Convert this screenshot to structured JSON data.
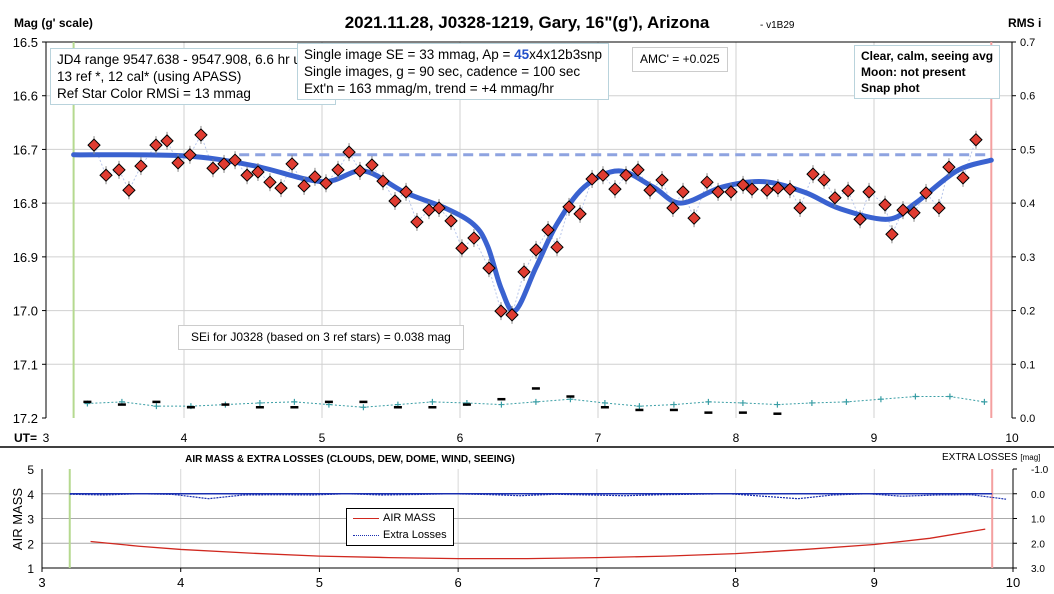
{
  "title": "2021.11.28, J0328-1219, Gary, 16\"(g'), Arizona",
  "version": "- v1B29",
  "y_left_label": "Mag (g' scale)",
  "y_right_label": "RMS i",
  "x_axis_prefix": "UT=",
  "info_box_1": [
    "JD4 range 9547.638 - 9547.908, 6.6 hr useful",
    "13 ref *, 12 cal* (using APASS)",
    "Ref Star Color RMSi = 13 mmag"
  ],
  "info_box_2": {
    "line1_a": "Single image SE = 33 mmag, Ap = ",
    "line1_b": "45",
    "line1_c": "x4x12b3snp",
    "line2": "Single images, g = 90 sec, cadence = 100 sec",
    "line3": "Ext'n = 163 mmag/m, trend = +4 mmag/hr"
  },
  "amc_box": "AMC' = +0.025",
  "conditions_box": [
    "Clear, calm, seeing avg",
    "Moon: not present",
    "Snap phot"
  ],
  "sei_box": "SEi for J0328 (based on 3 ref stars) = 0.038 mag",
  "colors": {
    "diamond": "#e03c31",
    "fit": "#3a62d0",
    "cross": "#1a3fb5",
    "teal": "#3a9ea5",
    "airmass": "#d0281f",
    "losses": "#1a2fb0",
    "start_line": "#b5d98f",
    "end_line": "#f4a0a0"
  },
  "chart_data": [
    {
      "type": "scatter",
      "title": "2021.11.28, J0328-1219, Gary, 16\"(g'), Arizona",
      "xlabel": "UT",
      "ylabel": "Mag (g' scale)",
      "y2label": "RMS i",
      "xlim": [
        3,
        10
      ],
      "ylim": [
        16.5,
        17.2
      ],
      "y2lim": [
        0,
        0.7
      ],
      "xticks": [
        "3",
        "4",
        "5",
        "6",
        "7",
        "8",
        "9",
        "10"
      ],
      "yticks": [
        "16.5",
        "16.6",
        "16.7",
        "16.8",
        "16.9",
        "17.0",
        "17.1",
        "17.2"
      ],
      "y2ticks": [
        "0.7",
        "0.6",
        "0.5",
        "0.4",
        "0.3",
        "0.2",
        "0.1",
        "0.0"
      ],
      "grid": true,
      "start_ut": 3.2,
      "end_ut": 9.85,
      "reference_mag": 16.71,
      "binned": {
        "x": [
          3.348,
          3.435,
          3.529,
          3.601,
          3.688,
          3.797,
          3.877,
          3.957,
          4.043,
          4.123,
          4.21,
          4.29,
          4.37,
          4.457,
          4.536,
          4.623,
          4.703,
          4.783,
          4.87,
          4.949,
          5.029,
          5.116,
          5.196,
          5.275,
          5.362,
          5.442,
          5.529,
          5.609,
          5.688,
          5.775,
          5.848,
          5.935,
          6.014,
          6.101,
          6.21,
          6.297,
          6.377,
          6.464,
          6.551,
          6.638,
          6.703,
          6.79,
          6.87,
          6.957,
          7.036,
          7.123,
          7.203,
          7.29,
          7.377,
          7.464,
          7.543,
          7.616,
          7.696,
          7.79,
          7.87,
          7.964,
          8.051,
          8.116,
          8.225,
          8.304,
          8.391,
          8.464,
          8.558,
          8.638,
          8.717,
          8.812,
          8.899,
          8.964,
          9.08,
          9.13,
          9.21,
          9.29,
          9.377,
          9.471,
          9.543,
          9.645,
          9.739
        ],
        "y": [
          16.692,
          16.748,
          16.738,
          16.776,
          16.731,
          16.692,
          16.684,
          16.725,
          16.71,
          16.673,
          16.735,
          16.727,
          16.72,
          16.748,
          16.742,
          16.761,
          16.772,
          16.727,
          16.768,
          16.751,
          16.763,
          16.738,
          16.705,
          16.74,
          16.729,
          16.759,
          16.796,
          16.779,
          16.835,
          16.813,
          16.809,
          16.833,
          16.884,
          16.865,
          16.921,
          17.001,
          17.008,
          16.928,
          16.887,
          16.85,
          16.882,
          16.807,
          16.82,
          16.755,
          16.748,
          16.774,
          16.748,
          16.738,
          16.776,
          16.757,
          16.809,
          16.779,
          16.828,
          16.761,
          16.779,
          16.779,
          16.766,
          16.774,
          16.776,
          16.772,
          16.774,
          16.809,
          16.746,
          16.757,
          16.79,
          16.777,
          16.83,
          16.779,
          16.803,
          16.858,
          16.813,
          16.818,
          16.781,
          16.809,
          16.733,
          16.753,
          16.682
        ]
      },
      "fit": {
        "x": [
          3.2,
          4.0,
          4.5,
          5.0,
          5.3,
          5.6,
          5.9,
          6.1,
          6.2,
          6.3,
          6.4,
          6.55,
          6.7,
          6.9,
          7.15,
          7.4,
          7.6,
          7.9,
          8.2,
          8.5,
          8.75,
          9.1,
          9.3,
          9.6,
          9.85
        ],
        "y": [
          16.71,
          16.712,
          16.73,
          16.76,
          16.74,
          16.78,
          16.81,
          16.84,
          16.88,
          16.96,
          17.0,
          16.92,
          16.84,
          16.77,
          16.74,
          16.77,
          16.8,
          16.77,
          16.76,
          16.78,
          16.81,
          16.83,
          16.8,
          16.74,
          16.72
        ]
      },
      "rms_series": [
        {
          "name": "rms_cal",
          "x_start": 3.3,
          "x_step": 0.25,
          "values": [
            0.027,
            0.03,
            0.022,
            0.022,
            0.025,
            0.028,
            0.03,
            0.025,
            0.02,
            0.025,
            0.03,
            0.028,
            0.025,
            0.03,
            0.035,
            0.028,
            0.022,
            0.025,
            0.03,
            0.028,
            0.025,
            0.028,
            0.03,
            0.035,
            0.04,
            0.04,
            0.03
          ]
        },
        {
          "name": "rms_target",
          "x_start": 3.3,
          "x_step": 0.25,
          "values": [
            0.03,
            0.025,
            0.03,
            0.02,
            0.025,
            0.02,
            0.02,
            0.03,
            0.03,
            0.02,
            0.02,
            0.025,
            0.035,
            0.055,
            0.04,
            0.02,
            0.015,
            0.015,
            0.01,
            0.01,
            0.008
          ]
        }
      ]
    },
    {
      "type": "line",
      "title": "AIR MASS & EXTRA LOSSES (CLOUDS, DEW, DOME, WIND, SEEING)",
      "ylabel": "AIR MASS",
      "y2label": "EXTRA LOSSES",
      "y2unit": "[mag]",
      "xlim": [
        3,
        10
      ],
      "ylim": [
        1,
        5
      ],
      "y2lim": [
        -1,
        3
      ],
      "xticks": [
        "3",
        "4",
        "5",
        "6",
        "7",
        "8",
        "9",
        "10"
      ],
      "yticks": [
        "1",
        "2",
        "3",
        "4",
        "5"
      ],
      "y2ticks": [
        "-1.0",
        "0.0",
        "1.0",
        "2.0",
        "3.0"
      ],
      "legend": [
        "AIR MASS",
        "Extra Losses"
      ],
      "series": [
        {
          "name": "AIR MASS",
          "x": [
            3.35,
            3.7,
            4.0,
            4.5,
            5.0,
            5.5,
            6.0,
            6.5,
            7.0,
            7.5,
            8.0,
            8.5,
            9.0,
            9.4,
            9.8
          ],
          "y": [
            2.07,
            1.88,
            1.75,
            1.6,
            1.48,
            1.42,
            1.38,
            1.38,
            1.42,
            1.48,
            1.58,
            1.75,
            1.95,
            2.2,
            2.57
          ]
        },
        {
          "name": "Extra Losses",
          "x_start": 3.2,
          "x_step": 0.25,
          "values": [
            0.02,
            0.05,
            0.0,
            0.03,
            0.2,
            0.05,
            0.04,
            0.05,
            0.0,
            0.05,
            0.03,
            0.0,
            0.03,
            0.08,
            0.02,
            0.05,
            0.08,
            0.04,
            0.02,
            0.0,
            0.1,
            0.2,
            0.05,
            0.0,
            0.1,
            0.05,
            0.04,
            0.22
          ]
        }
      ]
    }
  ]
}
